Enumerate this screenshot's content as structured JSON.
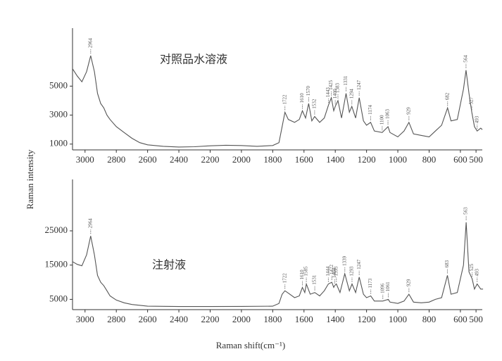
{
  "ylabel": "Raman intensity",
  "xlabel": "Raman shift(cm⁻¹)",
  "chart_data": [
    {
      "type": "line",
      "title": "对照品水溶液",
      "x": [
        3080,
        3050,
        3020,
        2990,
        2964,
        2940,
        2920,
        2900,
        2880,
        2860,
        2840,
        2800,
        2750,
        2700,
        2650,
        2600,
        2500,
        2400,
        2300,
        2200,
        2100,
        2000,
        1900,
        1800,
        1760,
        1740,
        1722,
        1700,
        1660,
        1630,
        1610,
        1590,
        1570,
        1550,
        1532,
        1500,
        1470,
        1443,
        1425,
        1410,
        1400,
        1383,
        1360,
        1331,
        1310,
        1294,
        1270,
        1247,
        1220,
        1200,
        1174,
        1150,
        1100,
        1063,
        1050,
        1000,
        960,
        929,
        900,
        850,
        800,
        760,
        720,
        682,
        660,
        620,
        580,
        564,
        545,
        527,
        510,
        493,
        470,
        460
      ],
      "series": [
        {
          "color": "#555555",
          "values": [
            6200,
            5700,
            5300,
            6000,
            7100,
            6000,
            4500,
            3800,
            3500,
            3000,
            2700,
            2200,
            1800,
            1400,
            1100,
            950,
            850,
            800,
            820,
            880,
            920,
            900,
            850,
            900,
            1100,
            2200,
            3200,
            2700,
            2500,
            2700,
            3300,
            2800,
            3800,
            2600,
            2900,
            2500,
            2800,
            3700,
            4200,
            3300,
            3600,
            4000,
            2800,
            4500,
            3200,
            3600,
            2800,
            4200,
            2600,
            2300,
            2500,
            1900,
            1800,
            2200,
            1800,
            1500,
            1900,
            2500,
            1700,
            1600,
            1500,
            1900,
            2300,
            3500,
            2600,
            2700,
            4800,
            6100,
            4500,
            3200,
            2200,
            1900,
            2100,
            2000
          ]
        }
      ],
      "peaks": [
        2964,
        1722,
        1610,
        1570,
        1532,
        1443,
        1425,
        1400,
        1383,
        1331,
        1294,
        1247,
        1174,
        1100,
        1063,
        929,
        682,
        564,
        527,
        493
      ],
      "xlim": [
        3080,
        460
      ],
      "xticks": [
        3000,
        2800,
        2600,
        2400,
        2200,
        2000,
        1800,
        1600,
        1400,
        1200,
        1000,
        800,
        600,
        500
      ],
      "ylim": [
        600,
        9000
      ],
      "yticks": [
        1000,
        3000,
        5000
      ]
    },
    {
      "type": "line",
      "title": "注射液",
      "x": [
        3080,
        3050,
        3020,
        2990,
        2964,
        2940,
        2920,
        2900,
        2880,
        2860,
        2840,
        2800,
        2750,
        2700,
        2600,
        2400,
        2200,
        2000,
        1800,
        1760,
        1740,
        1722,
        1700,
        1660,
        1630,
        1610,
        1595,
        1585,
        1560,
        1531,
        1500,
        1470,
        1444,
        1422,
        1410,
        1404,
        1393,
        1370,
        1339,
        1310,
        1293,
        1270,
        1247,
        1220,
        1200,
        1173,
        1150,
        1096,
        1061,
        1050,
        1000,
        960,
        929,
        900,
        850,
        800,
        760,
        720,
        683,
        660,
        620,
        580,
        563,
        545,
        525,
        510,
        493,
        470,
        455
      ],
      "series": [
        {
          "color": "#555555",
          "values": [
            16000,
            15200,
            14800,
            18000,
            23500,
            18000,
            12000,
            10000,
            9000,
            7500,
            6000,
            4800,
            4000,
            3500,
            3000,
            2900,
            2900,
            2950,
            3000,
            3800,
            6500,
            7500,
            6800,
            5500,
            6000,
            8500,
            7000,
            9500,
            6500,
            7000,
            6000,
            7500,
            9500,
            10000,
            8500,
            9000,
            9500,
            7000,
            12500,
            7500,
            9500,
            7000,
            11500,
            6500,
            5500,
            6000,
            4500,
            4500,
            5000,
            4200,
            3800,
            4500,
            6500,
            4200,
            4000,
            4200,
            5000,
            5500,
            12000,
            6500,
            7000,
            15000,
            27500,
            13000,
            11000,
            8000,
            9500,
            8000,
            8000
          ]
        }
      ],
      "peaks": [
        2964,
        1722,
        1610,
        1585,
        1531,
        1444,
        1422,
        1404,
        1393,
        1339,
        1293,
        1247,
        1173,
        1096,
        1061,
        929,
        683,
        563,
        525,
        493
      ],
      "xlim": [
        3080,
        460
      ],
      "xticks": [
        3000,
        2800,
        2600,
        2400,
        2200,
        2000,
        1800,
        1600,
        1400,
        1200,
        1000,
        800,
        600,
        500
      ],
      "ylim": [
        2000,
        40000
      ],
      "yticks": [
        5000,
        15000,
        25000
      ]
    }
  ]
}
